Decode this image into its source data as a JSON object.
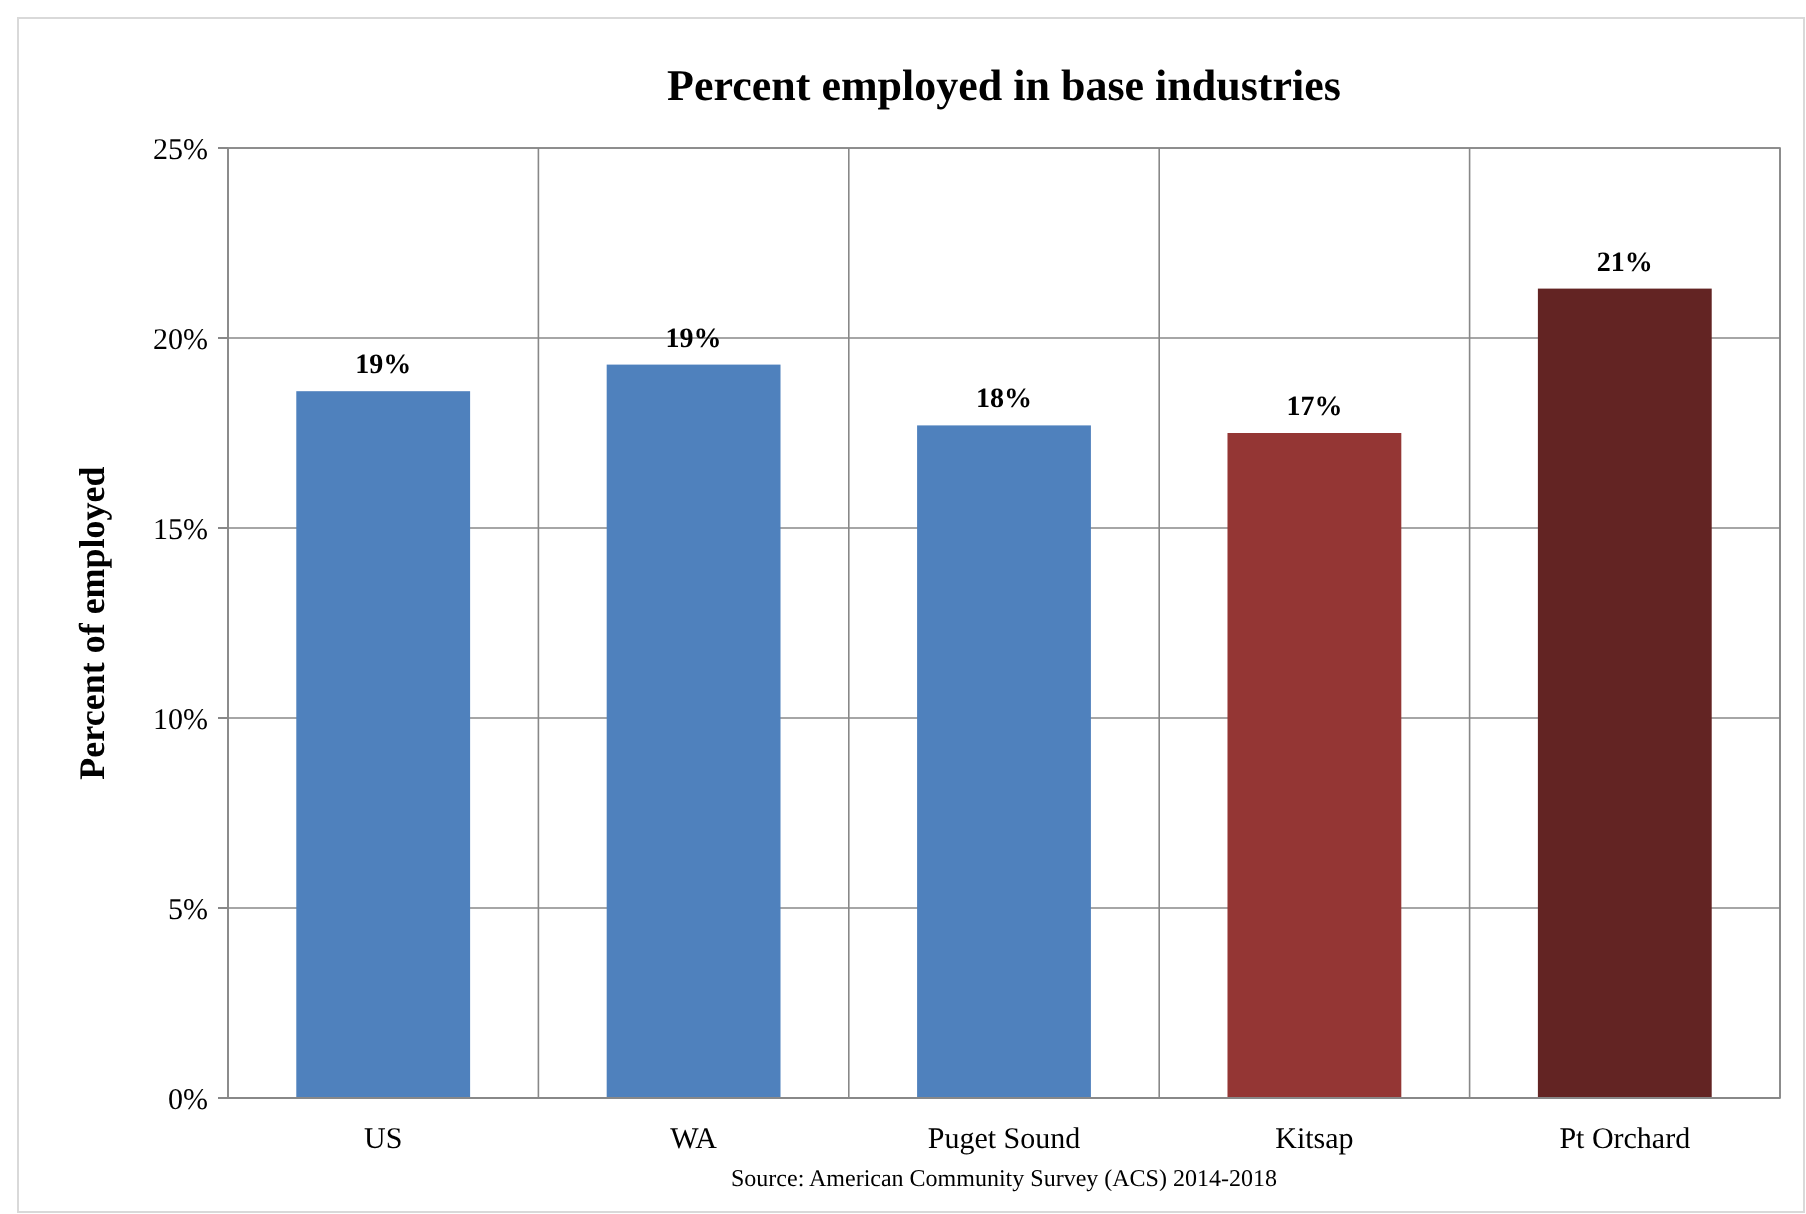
{
  "chart_data": {
    "type": "bar",
    "title": "Percent employed in base industries",
    "ylabel": "Percent of employed",
    "categories": [
      "US",
      "WA",
      "Puget Sound",
      "Kitsap",
      "Pt Orchard"
    ],
    "values": [
      18.6,
      19.3,
      17.7,
      17.5,
      21.3
    ],
    "colors": [
      "#4f81bd",
      "#4f81bd",
      "#4f81bd",
      "#943634",
      "#632423"
    ],
    "value_labels": [
      "19%",
      "19%",
      "18%",
      "17%",
      "21%"
    ],
    "ylim": [
      0,
      25
    ],
    "yticks": [
      {
        "value": 0,
        "label": "0%"
      },
      {
        "value": 5,
        "label": "5%"
      },
      {
        "value": 10,
        "label": "10%"
      },
      {
        "value": 15,
        "label": "15%"
      },
      {
        "value": 20,
        "label": "20%"
      },
      {
        "value": 25,
        "label": "25%"
      }
    ],
    "grid": true,
    "annotations": [
      "Source: American Community Survey (ACS) 2014-2018"
    ]
  }
}
